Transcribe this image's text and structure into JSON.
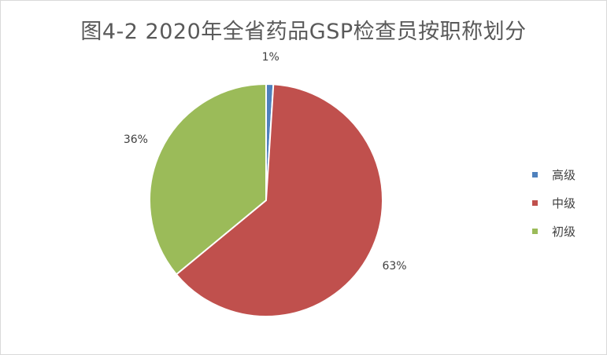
{
  "chart_data": {
    "type": "pie",
    "title": "图4-2  2020年全省药品GSP检查员按职称划分",
    "categories": [
      "高级",
      "中级",
      "初级"
    ],
    "values": [
      1,
      63,
      36
    ],
    "labels": [
      "1%",
      "63%",
      "36%"
    ],
    "colors": [
      "#4f81bd",
      "#c0504d",
      "#9bbb59"
    ],
    "legend_position": "right"
  }
}
